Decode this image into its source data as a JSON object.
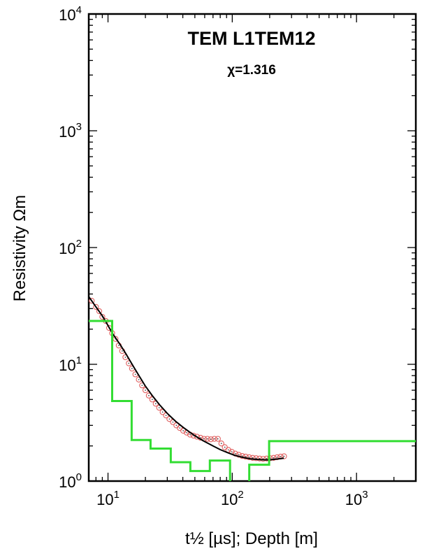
{
  "chart_data": {
    "type": "line",
    "title": "TEM L1TEM12",
    "subtitle": "χ=1.316",
    "xlabel": "t½ [µs]; Depth [m]",
    "ylabel": "Resistivity Ωm",
    "x_scale": "log",
    "y_scale": "log",
    "xlim": [
      7,
      3000
    ],
    "ylim": [
      1,
      10000
    ],
    "x_ticks": [
      10,
      100,
      1000
    ],
    "x_tick_labels": [
      {
        "base": "10",
        "exp": "1"
      },
      {
        "base": "10",
        "exp": "2"
      },
      {
        "base": "10",
        "exp": "3"
      }
    ],
    "y_ticks": [
      1,
      10,
      100,
      1000,
      10000
    ],
    "y_tick_labels": [
      {
        "base": "10",
        "exp": "0"
      },
      {
        "base": "10",
        "exp": "1"
      },
      {
        "base": "10",
        "exp": "2"
      },
      {
        "base": "10",
        "exp": "3"
      },
      {
        "base": "10",
        "exp": "4"
      }
    ],
    "grid": false,
    "series": [
      {
        "type": "scatter",
        "color": "#e06060",
        "marker": "open-circle",
        "x": [
          7.4,
          8.0,
          8.5,
          9.0,
          9.6,
          10.2,
          10.8,
          11.5,
          12.2,
          13.0,
          13.8,
          14.7,
          15.6,
          16.6,
          17.7,
          18.8,
          20.0,
          21.3,
          22.7,
          24.2,
          25.8,
          27.5,
          29.3,
          31.2,
          33.3,
          35.5,
          37.8,
          40.3,
          43.0,
          45.8,
          48.8,
          52.0,
          55.5,
          59.2,
          63.1,
          67.3,
          71.8,
          76.6,
          81.7,
          87.1,
          92.9,
          99.1,
          105.7,
          112.7,
          120.2,
          128.2,
          136.8,
          145.9,
          155.6,
          166.0,
          177.1,
          188.9,
          201.5,
          215.0,
          229.4,
          244.7,
          261.0
        ],
        "y": [
          35.0,
          31.0,
          28.5,
          25.5,
          23.5,
          20.5,
          18.5,
          16.5,
          14.5,
          13.0,
          11.5,
          10.2,
          9.2,
          8.2,
          7.4,
          6.6,
          6.0,
          5.4,
          5.0,
          4.6,
          4.25,
          3.9,
          3.65,
          3.4,
          3.2,
          3.0,
          2.85,
          2.7,
          2.6,
          2.5,
          2.45,
          2.4,
          2.35,
          2.3,
          2.3,
          2.28,
          2.3,
          2.3,
          2.1,
          1.95,
          1.85,
          1.78,
          1.72,
          1.68,
          1.64,
          1.62,
          1.6,
          1.58,
          1.57,
          1.56,
          1.55,
          1.56,
          1.57,
          1.58,
          1.6,
          1.62,
          1.63
        ]
      },
      {
        "type": "line",
        "color": "#000000",
        "x": [
          7.0,
          8.0,
          9.0,
          10.0,
          11.0,
          12.5,
          14.0,
          16.0,
          18.0,
          20.0,
          23.0,
          26.0,
          30.0,
          35.0,
          40.0,
          46.0,
          53.0,
          60.0,
          70.0,
          80.0,
          92.0,
          105.0,
          120.0,
          140.0,
          160.0,
          180.0,
          200.0,
          225.0,
          260.0
        ],
        "y": [
          38.0,
          31.0,
          26.0,
          21.5,
          18.0,
          14.8,
          12.2,
          9.6,
          7.8,
          6.5,
          5.3,
          4.5,
          3.8,
          3.25,
          2.9,
          2.6,
          2.35,
          2.18,
          2.0,
          1.86,
          1.75,
          1.66,
          1.6,
          1.55,
          1.53,
          1.52,
          1.52,
          1.54,
          1.57
        ]
      },
      {
        "type": "step",
        "color": "#33dd33",
        "x": [
          7,
          10.8,
          10.8,
          15.5,
          15.5,
          22.0,
          22.0,
          32.0,
          32.0,
          46.0,
          46.0,
          66.0,
          66.0,
          96.0,
          96.0,
          137.0,
          137.0,
          198.0,
          198.0,
          3000
        ],
        "y": [
          23.5,
          23.5,
          4.85,
          4.85,
          2.25,
          2.25,
          1.9,
          1.9,
          1.45,
          1.45,
          1.22,
          1.22,
          1.5,
          1.5,
          0.8,
          0.8,
          1.38,
          1.38,
          2.2,
          2.2
        ]
      }
    ]
  }
}
